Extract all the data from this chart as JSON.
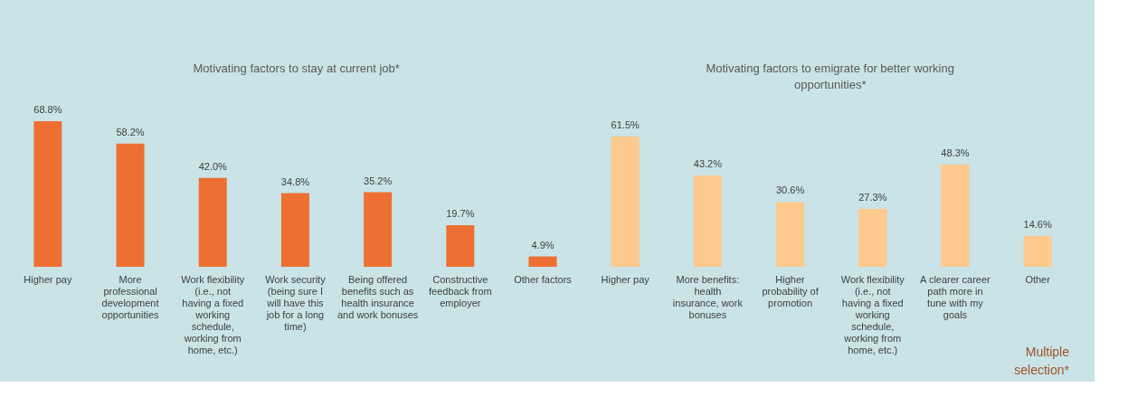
{
  "chart_data": {
    "type": "bar",
    "categories": [
      "Higher pay",
      "More professional development opportunities",
      "Work flexibility (i.e., not having a fixed working schedule, working from home, etc.)",
      "Work security (being sure I will have this job for a long time)",
      "Being offered benefits such as health insurance and work bonuses",
      "Constructive feedback from employer",
      "Other factors",
      "Higher pay",
      "More benefits: health insurance, work bonuses",
      "Higher probability of promotion",
      "Work flexibility (i.e., not having a fixed working schedule, working from home, etc.)",
      "A clearer career path more in tune with my goals",
      "Other"
    ],
    "values": [
      68.8,
      58.2,
      42.0,
      34.8,
      35.2,
      19.7,
      4.9,
      61.5,
      43.2,
      30.6,
      27.3,
      48.3,
      14.6
    ],
    "value_labels": [
      "68.8%",
      "58.2%",
      "42.0%",
      "34.8%",
      "35.2%",
      "19.7%",
      "4.9%",
      "61.5%",
      "43.2%",
      "30.6%",
      "27.3%",
      "48.3%",
      "14.6%"
    ],
    "colors": [
      "#ed7032",
      "#ed7032",
      "#ed7032",
      "#ed7032",
      "#ed7032",
      "#ed7032",
      "#ed7032",
      "#fdc98d",
      "#fdc98d",
      "#fdc98d",
      "#fdc98d",
      "#fdc98d",
      "#fdc98d"
    ],
    "annotations": [
      "Motivating factors to stay at current job*",
      "Motivating factors to emigrate for better working opportunities*",
      "Multiple selection*"
    ],
    "grid": false
  }
}
